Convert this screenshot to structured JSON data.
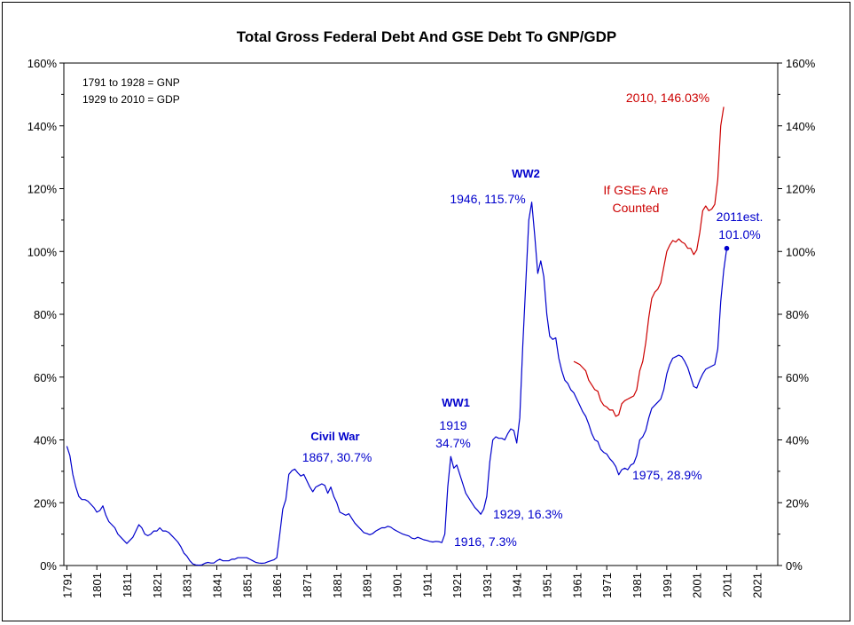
{
  "chart_data": {
    "type": "line",
    "title": "Total Gross Federal Debt  And GSE Debt To GNP/GDP",
    "notes": [
      "1791 to 1928 = GNP",
      "1929 to 2010 = GDP"
    ],
    "xlim": [
      1790,
      2028
    ],
    "ylim": [
      0,
      160
    ],
    "x_ticks": [
      1791,
      1801,
      1811,
      1821,
      1831,
      1841,
      1851,
      1861,
      1871,
      1881,
      1891,
      1901,
      1911,
      1921,
      1931,
      1941,
      1951,
      1961,
      1971,
      1981,
      1991,
      2001,
      2011,
      2021
    ],
    "y_ticks": [
      "0%",
      "20%",
      "40%",
      "60%",
      "80%",
      "100%",
      "120%",
      "140%",
      "160%"
    ],
    "grid": false,
    "colors": {
      "federal": "#0000cc",
      "gse": "#cc0000",
      "axis": "#000000",
      "annotation_blue": "#0000cc",
      "annotation_red": "#cc0000"
    },
    "series": [
      {
        "name": "",
        "color": "#0000cc",
        "points": [
          [
            1791,
            38
          ],
          [
            1792,
            35
          ],
          [
            1793,
            29
          ],
          [
            1794,
            25
          ],
          [
            1795,
            22
          ],
          [
            1796,
            21
          ],
          [
            1797,
            21
          ],
          [
            1798,
            20.5
          ],
          [
            1799,
            19.5
          ],
          [
            1800,
            18.5
          ],
          [
            1801,
            17
          ],
          [
            1802,
            17.5
          ],
          [
            1803,
            19
          ],
          [
            1804,
            16
          ],
          [
            1805,
            14
          ],
          [
            1806,
            13
          ],
          [
            1807,
            12
          ],
          [
            1808,
            10
          ],
          [
            1809,
            9
          ],
          [
            1810,
            8
          ],
          [
            1811,
            7
          ],
          [
            1812,
            8
          ],
          [
            1813,
            9
          ],
          [
            1814,
            11
          ],
          [
            1815,
            13
          ],
          [
            1816,
            12
          ],
          [
            1817,
            10
          ],
          [
            1818,
            9.5
          ],
          [
            1819,
            10
          ],
          [
            1820,
            11
          ],
          [
            1821,
            11
          ],
          [
            1822,
            12
          ],
          [
            1823,
            11
          ],
          [
            1824,
            11
          ],
          [
            1825,
            10.5
          ],
          [
            1826,
            9.5
          ],
          [
            1827,
            8.5
          ],
          [
            1828,
            7.5
          ],
          [
            1829,
            6
          ],
          [
            1830,
            4
          ],
          [
            1831,
            3
          ],
          [
            1832,
            1.5
          ],
          [
            1833,
            0.5
          ],
          [
            1834,
            0.2
          ],
          [
            1835,
            0.1
          ],
          [
            1836,
            0.2
          ],
          [
            1837,
            0.7
          ],
          [
            1838,
            1
          ],
          [
            1839,
            0.8
          ],
          [
            1840,
            0.8
          ],
          [
            1841,
            1.5
          ],
          [
            1842,
            2
          ],
          [
            1843,
            1.5
          ],
          [
            1844,
            1.5
          ],
          [
            1845,
            1.5
          ],
          [
            1846,
            2
          ],
          [
            1847,
            2
          ],
          [
            1848,
            2.5
          ],
          [
            1849,
            2.5
          ],
          [
            1850,
            2.5
          ],
          [
            1851,
            2.5
          ],
          [
            1852,
            2
          ],
          [
            1853,
            1.5
          ],
          [
            1854,
            1
          ],
          [
            1855,
            0.8
          ],
          [
            1856,
            0.7
          ],
          [
            1857,
            0.8
          ],
          [
            1858,
            1.2
          ],
          [
            1859,
            1.5
          ],
          [
            1860,
            1.8
          ],
          [
            1861,
            2.5
          ],
          [
            1862,
            10
          ],
          [
            1863,
            18
          ],
          [
            1864,
            21
          ],
          [
            1865,
            29
          ],
          [
            1866,
            30.2
          ],
          [
            1867,
            30.7
          ],
          [
            1868,
            29.5
          ],
          [
            1869,
            28.5
          ],
          [
            1870,
            29
          ],
          [
            1871,
            27
          ],
          [
            1872,
            25
          ],
          [
            1873,
            23.5
          ],
          [
            1874,
            25
          ],
          [
            1875,
            25.5
          ],
          [
            1876,
            26
          ],
          [
            1877,
            25.5
          ],
          [
            1878,
            23
          ],
          [
            1879,
            25
          ],
          [
            1880,
            22
          ],
          [
            1881,
            20
          ],
          [
            1882,
            17
          ],
          [
            1883,
            16.5
          ],
          [
            1884,
            16
          ],
          [
            1885,
            16.5
          ],
          [
            1886,
            15
          ],
          [
            1887,
            13.5
          ],
          [
            1888,
            12.5
          ],
          [
            1889,
            11.5
          ],
          [
            1890,
            10.5
          ],
          [
            1891,
            10.2
          ],
          [
            1892,
            9.8
          ],
          [
            1893,
            10.2
          ],
          [
            1894,
            11
          ],
          [
            1895,
            11.5
          ],
          [
            1896,
            12
          ],
          [
            1897,
            12
          ],
          [
            1898,
            12.5
          ],
          [
            1899,
            12.2
          ],
          [
            1900,
            11.5
          ],
          [
            1901,
            11
          ],
          [
            1902,
            10.5
          ],
          [
            1903,
            10
          ],
          [
            1904,
            9.7
          ],
          [
            1905,
            9.4
          ],
          [
            1906,
            8.7
          ],
          [
            1907,
            8.5
          ],
          [
            1908,
            9
          ],
          [
            1909,
            8.6
          ],
          [
            1910,
            8.2
          ],
          [
            1911,
            8
          ],
          [
            1912,
            7.7
          ],
          [
            1913,
            7.5
          ],
          [
            1914,
            7.7
          ],
          [
            1915,
            7.6
          ],
          [
            1916,
            7.3
          ],
          [
            1917,
            10
          ],
          [
            1918,
            25
          ],
          [
            1919,
            34.7
          ],
          [
            1920,
            31
          ],
          [
            1921,
            32
          ],
          [
            1922,
            29
          ],
          [
            1923,
            26
          ],
          [
            1924,
            23
          ],
          [
            1925,
            21.5
          ],
          [
            1926,
            20
          ],
          [
            1927,
            18.5
          ],
          [
            1928,
            17.5
          ],
          [
            1929,
            16.3
          ],
          [
            1930,
            18
          ],
          [
            1931,
            22
          ],
          [
            1932,
            33
          ],
          [
            1933,
            40
          ],
          [
            1934,
            41
          ],
          [
            1935,
            40.5
          ],
          [
            1936,
            40.5
          ],
          [
            1937,
            40
          ],
          [
            1938,
            42
          ],
          [
            1939,
            43.5
          ],
          [
            1940,
            43
          ],
          [
            1941,
            39
          ],
          [
            1942,
            47
          ],
          [
            1943,
            70
          ],
          [
            1944,
            90
          ],
          [
            1945,
            110
          ],
          [
            1946,
            115.7
          ],
          [
            1947,
            105
          ],
          [
            1948,
            93
          ],
          [
            1949,
            97
          ],
          [
            1950,
            92
          ],
          [
            1951,
            80
          ],
          [
            1952,
            73
          ],
          [
            1953,
            72
          ],
          [
            1954,
            72.5
          ],
          [
            1955,
            66
          ],
          [
            1956,
            62
          ],
          [
            1957,
            59
          ],
          [
            1958,
            58
          ],
          [
            1959,
            56
          ],
          [
            1960,
            55
          ],
          [
            1961,
            53
          ],
          [
            1962,
            51
          ],
          [
            1963,
            49
          ],
          [
            1964,
            47.5
          ],
          [
            1965,
            45
          ],
          [
            1966,
            42
          ],
          [
            1967,
            40
          ],
          [
            1968,
            39.5
          ],
          [
            1969,
            37
          ],
          [
            1970,
            36
          ],
          [
            1971,
            35.5
          ],
          [
            1972,
            34
          ],
          [
            1973,
            33
          ],
          [
            1974,
            31.5
          ],
          [
            1975,
            28.9
          ],
          [
            1976,
            30.5
          ],
          [
            1977,
            31
          ],
          [
            1978,
            30.5
          ],
          [
            1979,
            32
          ],
          [
            1980,
            32.5
          ],
          [
            1981,
            35
          ],
          [
            1982,
            40
          ],
          [
            1983,
            41
          ],
          [
            1984,
            43
          ],
          [
            1985,
            47
          ],
          [
            1986,
            50
          ],
          [
            1987,
            51
          ],
          [
            1988,
            52
          ],
          [
            1989,
            53
          ],
          [
            1990,
            56
          ],
          [
            1991,
            61
          ],
          [
            1992,
            64
          ],
          [
            1993,
            66
          ],
          [
            1994,
            66.5
          ],
          [
            1995,
            67
          ],
          [
            1996,
            66.5
          ],
          [
            1997,
            65
          ],
          [
            1998,
            63
          ],
          [
            1999,
            60
          ],
          [
            2000,
            57
          ],
          [
            2001,
            56.5
          ],
          [
            2002,
            59
          ],
          [
            2003,
            61
          ],
          [
            2004,
            62.5
          ],
          [
            2005,
            63
          ],
          [
            2006,
            63.5
          ],
          [
            2007,
            64
          ],
          [
            2008,
            69
          ],
          [
            2009,
            84
          ],
          [
            2010,
            94
          ],
          [
            2011,
            101
          ]
        ]
      },
      {
        "name": "",
        "color": "#cc0000",
        "points": [
          [
            1960,
            65
          ],
          [
            1961,
            64.5
          ],
          [
            1962,
            64
          ],
          [
            1963,
            63
          ],
          [
            1964,
            62
          ],
          [
            1965,
            59
          ],
          [
            1966,
            57.5
          ],
          [
            1967,
            56
          ],
          [
            1968,
            55.5
          ],
          [
            1969,
            52.5
          ],
          [
            1970,
            51
          ],
          [
            1971,
            50.5
          ],
          [
            1972,
            49.5
          ],
          [
            1973,
            49.5
          ],
          [
            1974,
            47.5
          ],
          [
            1975,
            48
          ],
          [
            1976,
            51.5
          ],
          [
            1977,
            52.5
          ],
          [
            1978,
            53
          ],
          [
            1979,
            53.5
          ],
          [
            1980,
            54
          ],
          [
            1981,
            56
          ],
          [
            1982,
            62
          ],
          [
            1983,
            65
          ],
          [
            1984,
            71
          ],
          [
            1985,
            79
          ],
          [
            1986,
            85
          ],
          [
            1987,
            87
          ],
          [
            1988,
            88
          ],
          [
            1989,
            90
          ],
          [
            1990,
            95
          ],
          [
            1991,
            100
          ],
          [
            1992,
            102
          ],
          [
            1993,
            103.5
          ],
          [
            1994,
            103
          ],
          [
            1995,
            104
          ],
          [
            1996,
            103
          ],
          [
            1997,
            102.5
          ],
          [
            1998,
            101
          ],
          [
            1999,
            101
          ],
          [
            2000,
            99
          ],
          [
            2001,
            100.5
          ],
          [
            2002,
            106
          ],
          [
            2003,
            113
          ],
          [
            2004,
            114.5
          ],
          [
            2005,
            113
          ],
          [
            2006,
            113.5
          ],
          [
            2007,
            115
          ],
          [
            2008,
            123
          ],
          [
            2009,
            140
          ],
          [
            2010,
            146.03
          ]
        ]
      }
    ],
    "annotations": [
      {
        "id": "red-2010",
        "lines": [
          "2010, 146.03%"
        ],
        "color": "#cc0000",
        "bold": false
      },
      {
        "id": "gse",
        "lines": [
          "If GSEs Are",
          "Counted"
        ],
        "color": "#cc0000",
        "bold": false
      },
      {
        "id": "ww2",
        "lines": [
          "WW2"
        ],
        "color": "#0000cc",
        "bold": true
      },
      {
        "id": "peak-1946",
        "lines": [
          "1946, 115.7%"
        ],
        "color": "#0000cc",
        "bold": false
      },
      {
        "id": "est-2011",
        "lines": [
          "2011est.",
          "101.0%"
        ],
        "color": "#0000cc",
        "bold": false
      },
      {
        "id": "ww1",
        "lines": [
          "WW1"
        ],
        "color": "#0000cc",
        "bold": true
      },
      {
        "id": "ww1-value",
        "lines": [
          "1919",
          "34.7%"
        ],
        "color": "#0000cc",
        "bold": false
      },
      {
        "id": "civil-war",
        "lines": [
          "Civil War"
        ],
        "color": "#0000cc",
        "bold": true
      },
      {
        "id": "civil-war-value",
        "lines": [
          "1867, 30.7%"
        ],
        "color": "#0000cc",
        "bold": false
      },
      {
        "id": "low-1929",
        "lines": [
          "1929, 16.3%"
        ],
        "color": "#0000cc",
        "bold": false
      },
      {
        "id": "low-1975",
        "lines": [
          "1975, 28.9%"
        ],
        "color": "#0000cc",
        "bold": false
      },
      {
        "id": "low-1916",
        "lines": [
          "1916, 7.3%"
        ],
        "color": "#0000cc",
        "bold": false
      }
    ],
    "marker": {
      "x": 2011,
      "y": 101
    }
  }
}
